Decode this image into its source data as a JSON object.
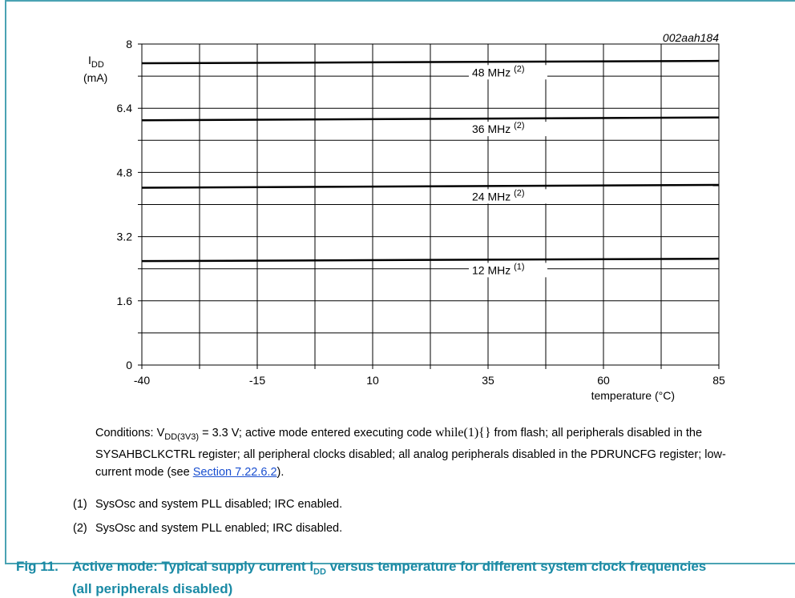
{
  "figure_id": "002aah184",
  "chart_data": {
    "type": "line",
    "ylabel_main": "I",
    "ylabel_sub": "DD",
    "ylabel_unit": "(mA)",
    "xlabel": "temperature (°C)",
    "xlim": [
      -40,
      85
    ],
    "ylim": [
      0,
      8
    ],
    "xticks": [
      -40,
      -15,
      10,
      35,
      60,
      85
    ],
    "yticks": [
      0,
      1.6,
      3.2,
      4.8,
      6.4,
      8
    ],
    "xtick_labels": [
      "-40",
      "-15",
      "10",
      "35",
      "60",
      "85"
    ],
    "ytick_labels": [
      "0",
      "1.6",
      "3.2",
      "4.8",
      "6.4",
      "8"
    ],
    "grid": true,
    "series": [
      {
        "name": "48 MHz",
        "note": "(2)",
        "x": [
          -40,
          85
        ],
        "y": [
          7.52,
          7.58
        ]
      },
      {
        "name": "36 MHz",
        "note": "(2)",
        "x": [
          -40,
          85
        ],
        "y": [
          6.1,
          6.17
        ]
      },
      {
        "name": "24 MHz",
        "note": "(2)",
        "x": [
          -40,
          85
        ],
        "y": [
          4.42,
          4.49
        ]
      },
      {
        "name": "12 MHz",
        "note": "(1)",
        "x": [
          -40,
          85
        ],
        "y": [
          2.59,
          2.65
        ]
      }
    ]
  },
  "conditions": {
    "prefix": "Conditions: V",
    "vsub": "DD(3V3)",
    "mid": " = 3.3 V; active mode entered executing code ",
    "code": "while(1){}",
    "rest": " from flash; all peripherals disabled in the SYSAHBCLKCTRL register; all peripheral clocks disabled; all analog peripherals disabled in the PDRUNCFG register; low-current mode (see ",
    "link": "Section 7.22.6.2",
    "end": ")."
  },
  "notes": [
    {
      "num": "(1)",
      "text": "SysOsc and system PLL disabled; IRC enabled."
    },
    {
      "num": "(2)",
      "text": "SysOsc and system PLL enabled; IRC disabled."
    }
  ],
  "caption": {
    "fig": "Fig 11.",
    "pre": "Active mode: Typical supply current I",
    "sub": "DD",
    "post": " versus temperature for different system clock frequencies (all peripherals disabled)"
  }
}
